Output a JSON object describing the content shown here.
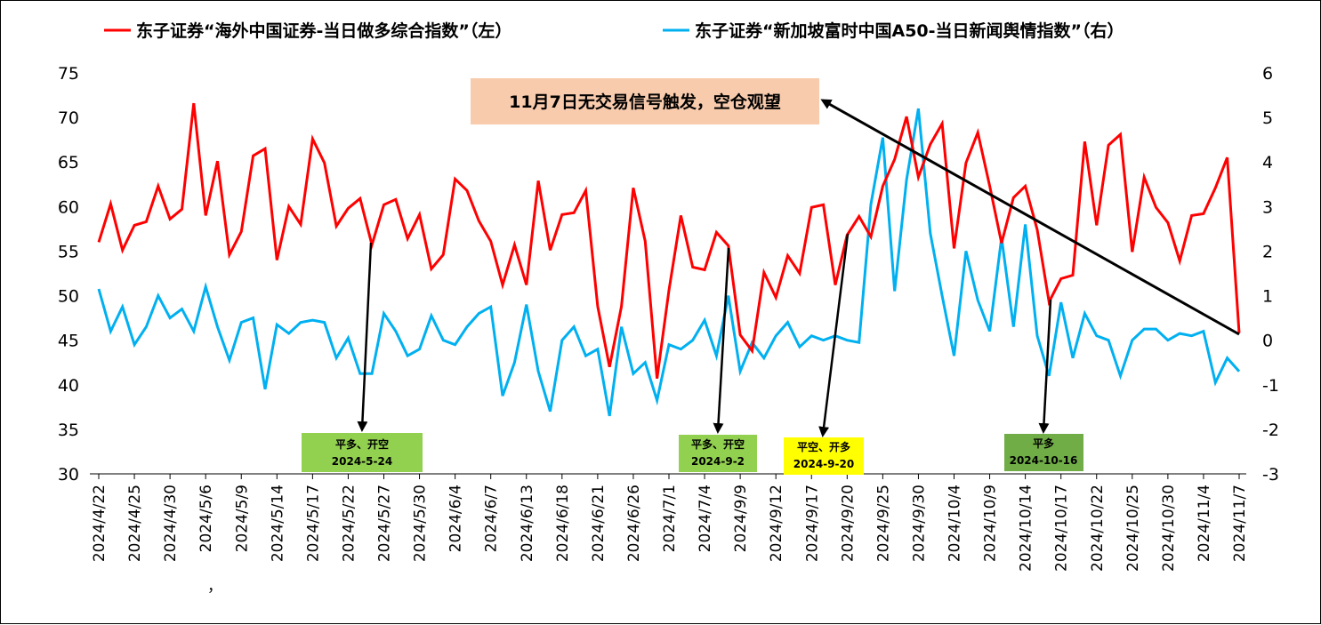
{
  "legend": {
    "left_label": "东子证券“海外中国证券-当日做多综合指数”（左）",
    "right_label": "东子证券“新加坡富时中国A50-当日新闻舆情指数”（右）"
  },
  "note": {
    "text": "11月7日无交易信号触发，空仓观望"
  },
  "signals": [
    {
      "line1": "平多、开空",
      "line2": "2024-5-24",
      "color": "#92d050",
      "index": 23
    },
    {
      "line1": "平多、开空",
      "line2": "2024-9-2",
      "color": "#92d050",
      "index": 54
    },
    {
      "line1": "平空、开多",
      "line2": "2024-9-20",
      "color": "#ffff00",
      "index": 63
    },
    {
      "line1": "平多",
      "line2": "2024-10-16",
      "color": "#70ad47",
      "index": 81
    }
  ],
  "stray_mark": "，",
  "chart_data": {
    "type": "line",
    "x_tick_labels": [
      "2024/4/22",
      "2024/4/25",
      "2024/4/30",
      "2024/5/6",
      "2024/5/9",
      "2024/5/14",
      "2024/5/17",
      "2024/5/22",
      "2024/5/27",
      "2024/5/30",
      "2024/6/4",
      "2024/6/7",
      "2024/6/13",
      "2024/6/18",
      "2024/6/21",
      "2024/6/26",
      "2024/7/1",
      "2024/7/4",
      "2024/9/9",
      "2024/9/12",
      "2024/9/17",
      "2024/9/20",
      "2024/9/25",
      "2024/9/30",
      "2024/10/4",
      "2024/10/9",
      "2024/10/14",
      "2024/10/17",
      "2024/10/22",
      "2024/10/25",
      "2024/10/30",
      "2024/11/4",
      "2024/11/7"
    ],
    "left_axis": {
      "min": 30,
      "max": 75,
      "ticks": [
        30,
        35,
        40,
        45,
        50,
        55,
        60,
        65,
        70,
        75
      ]
    },
    "right_axis": {
      "min": -3,
      "max": 6,
      "ticks": [
        -3,
        -2,
        -1,
        0,
        1,
        2,
        3,
        4,
        5,
        6
      ]
    },
    "grid": false,
    "legend_position": "top",
    "series": [
      {
        "name": "东子证券“海外中国证券-当日做多综合指数”（左）",
        "axis": "left",
        "color": "#ff0000",
        "values": [
          56,
          60.3,
          55.1,
          57.9,
          58.3,
          62.3,
          58.6,
          59.7,
          71.6,
          59,
          65.1,
          54.6,
          57.2,
          65.7,
          66.5,
          54,
          60,
          58,
          67.6,
          64.9,
          57.8,
          59.8,
          60.9,
          55.7,
          60.2,
          60.8,
          56.4,
          59.1,
          53,
          54.6,
          63.1,
          61.8,
          58.4,
          56.1,
          51.2,
          55.7,
          51.2,
          62.9,
          55.1,
          59.1,
          59.3,
          61.8,
          48.8,
          42,
          48.8,
          62.1,
          56.1,
          40.7,
          50.6,
          59,
          53.2,
          52.9,
          57.1,
          55.6,
          45.6,
          43.8,
          52.6,
          49.8,
          54.5,
          52.5,
          59.9,
          60.2,
          51.2,
          56.8,
          58.9,
          56.6,
          62.3,
          65.3,
          70.1,
          63.3,
          67,
          69.3,
          55.3,
          64.9,
          68.3,
          62.3,
          55.9,
          61,
          62.3,
          57.4,
          49.3,
          51.9,
          52.3,
          67.3,
          57.9,
          66.9,
          68.1,
          54.9,
          63.3,
          59.9,
          58.2,
          53.9,
          59,
          59.2,
          62.1,
          65.5,
          45.8
        ]
      },
      {
        "name": "东子证券“新加坡富时中国A50-当日新闻舆情指数”（右）",
        "axis": "right",
        "color": "#00b0f0",
        "values": [
          1.15,
          0.2,
          0.75,
          -0.1,
          0.3,
          1,
          0.5,
          0.7,
          0.2,
          1.2,
          0.3,
          -0.45,
          0.4,
          0.5,
          -1.1,
          0.35,
          0.15,
          0.4,
          0.45,
          0.4,
          -0.4,
          0.05,
          -0.75,
          -0.75,
          0.6,
          0.2,
          -0.35,
          -0.2,
          0.55,
          0,
          -0.1,
          0.3,
          0.6,
          0.75,
          -1.25,
          -0.5,
          0.8,
          -0.7,
          -1.6,
          0,
          0.3,
          -0.35,
          -0.2,
          -1.7,
          0.3,
          -0.75,
          -0.5,
          -1.35,
          -0.1,
          -0.2,
          0,
          0.45,
          -0.35,
          1,
          -0.7,
          -0.05,
          -0.4,
          0.1,
          0.4,
          -0.15,
          0.1,
          0,
          0.1,
          0,
          -0.05,
          3.05,
          4.55,
          1.1,
          3.6,
          5.2,
          2.4,
          1,
          -0.35,
          2,
          0.9,
          0.2,
          2.3,
          0.3,
          2.6,
          0.1,
          -0.8,
          0.85,
          -0.4,
          0.6,
          0.1,
          0,
          -0.8,
          0,
          0.25,
          0.25,
          0,
          0.15,
          0.1,
          0.2,
          -0.95,
          -0.4,
          -0.7
        ]
      }
    ]
  }
}
